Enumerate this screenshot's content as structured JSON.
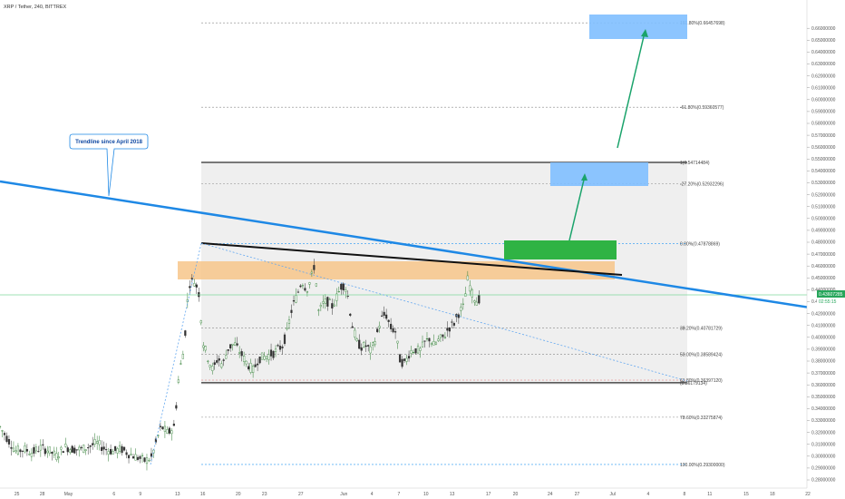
{
  "header": {
    "title": "XRP / Tether, 240, BITTREX"
  },
  "callout": {
    "text": "Trendline since April 2018"
  },
  "price_tags": {
    "last_price": "0.43607285",
    "countdown": "02:55:15",
    "last_price_color": "#26a65b"
  },
  "colors": {
    "trendline": "#1e88e5",
    "fib_zone_fill": "#eeeeee",
    "resistance_band": "#f7c58a",
    "target_box": "#7fbfff",
    "breakout_box": "#2fb344",
    "arrow": "#1aa36b",
    "up_candle": "#2e7d32",
    "down_candle": "#333333"
  },
  "chart_data": {
    "type": "candlestick",
    "symbol": "XRP / Tether",
    "timeframe": "240",
    "exchange": "BITTREX",
    "y_axis_ticks": [
      "0.66000000",
      "0.65000000",
      "0.64000000",
      "0.63000000",
      "0.62000000",
      "0.61000000",
      "0.60000000",
      "0.59000000",
      "0.58000000",
      "0.57000000",
      "0.56000000",
      "0.55000000",
      "0.54000000",
      "0.53000000",
      "0.52000000",
      "0.51000000",
      "0.50000000",
      "0.49000000",
      "0.48000000",
      "0.47000000",
      "0.46000000",
      "0.45000000",
      "0.44000000",
      "0.43000000",
      "0.42000000",
      "0.41000000",
      "0.40000000",
      "0.39000000",
      "0.38000000",
      "0.37000000",
      "0.36000000",
      "0.35000000",
      "0.34000000",
      "0.33000000",
      "0.32000000",
      "0.31000000",
      "0.30000000",
      "0.29000000",
      "0.28000000"
    ],
    "x_axis_ticks": [
      {
        "label": "25",
        "pos": 0.02
      },
      {
        "label": "28",
        "pos": 0.05
      },
      {
        "label": "May",
        "pos": 0.081
      },
      {
        "label": "6",
        "pos": 0.135
      },
      {
        "label": "9",
        "pos": 0.166
      },
      {
        "label": "13",
        "pos": 0.21
      },
      {
        "label": "16",
        "pos": 0.24
      },
      {
        "label": "20",
        "pos": 0.282
      },
      {
        "label": "23",
        "pos": 0.313
      },
      {
        "label": "27",
        "pos": 0.356
      },
      {
        "label": "Jun",
        "pos": 0.407
      },
      {
        "label": "4",
        "pos": 0.44
      },
      {
        "label": "7",
        "pos": 0.472
      },
      {
        "label": "10",
        "pos": 0.504
      },
      {
        "label": "13",
        "pos": 0.535
      },
      {
        "label": "17",
        "pos": 0.578
      },
      {
        "label": "20",
        "pos": 0.61
      },
      {
        "label": "24",
        "pos": 0.651
      },
      {
        "label": "27",
        "pos": 0.683
      },
      {
        "label": "Jul",
        "pos": 0.725
      },
      {
        "label": "4",
        "pos": 0.767
      },
      {
        "label": "8",
        "pos": 0.81
      },
      {
        "label": "11",
        "pos": 0.84
      },
      {
        "label": "15",
        "pos": 0.883
      },
      {
        "label": "18",
        "pos": 0.914
      },
      {
        "label": "22",
        "pos": 0.956
      }
    ],
    "fib_levels": [
      {
        "label": "161.80%(0.66457698)",
        "value": 0.66457698,
        "color": "#888888",
        "style": "dotted"
      },
      {
        "label": "-61.80%(0.59360577)",
        "value": 0.59360577,
        "color": "#888888",
        "style": "dotted"
      },
      {
        "label": "1(0.54714484)",
        "value": 0.54714484,
        "color": "#000000",
        "style": "solid"
      },
      {
        "label": "-27.20%(0.52932296)",
        "value": 0.52932296,
        "color": "#888888",
        "style": "dotted"
      },
      {
        "label": "0.00%(0.47878869)",
        "value": 0.47878869,
        "color": "#2196f3",
        "style": "dotted"
      },
      {
        "label": "38.20%(0.40781729)",
        "value": 0.40781729,
        "color": "#888888",
        "style": "dotted"
      },
      {
        "label": "50.00%(0.38589424)",
        "value": 0.38589424,
        "color": "#888888",
        "style": "dotted"
      },
      {
        "label": "61.80%(0.36397120)",
        "value": 0.3639712,
        "color": "#e57373",
        "style": "dotted"
      },
      {
        "label": "(0.36179134)",
        "value": 0.36179134,
        "color": "#000000",
        "style": "solid"
      },
      {
        "label": "78.60%(0.33275874)",
        "value": 0.33275874,
        "color": "#888888",
        "style": "dotted"
      },
      {
        "label": "100.00%(0.29300000)",
        "value": 0.293,
        "color": "#2196f3",
        "style": "dotted"
      }
    ],
    "candle_path": [
      [
        0.0,
        0.3245
      ],
      [
        0.01,
        0.314
      ],
      [
        0.02,
        0.304
      ],
      [
        0.03,
        0.306
      ],
      [
        0.04,
        0.303
      ],
      [
        0.05,
        0.307
      ],
      [
        0.06,
        0.305
      ],
      [
        0.07,
        0.3
      ],
      [
        0.08,
        0.308
      ],
      [
        0.09,
        0.306
      ],
      [
        0.1,
        0.3055
      ],
      [
        0.11,
        0.308
      ],
      [
        0.12,
        0.311
      ],
      [
        0.13,
        0.306
      ],
      [
        0.14,
        0.304
      ],
      [
        0.15,
        0.306
      ],
      [
        0.16,
        0.302
      ],
      [
        0.17,
        0.299
      ],
      [
        0.18,
        0.296
      ],
      [
        0.188,
        0.299
      ],
      [
        0.195,
        0.315
      ],
      [
        0.2,
        0.325
      ],
      [
        0.208,
        0.319
      ],
      [
        0.216,
        0.325
      ],
      [
        0.222,
        0.37
      ],
      [
        0.228,
        0.39
      ],
      [
        0.234,
        0.445
      ],
      [
        0.24,
        0.448
      ],
      [
        0.246,
        0.44
      ],
      [
        0.252,
        0.395
      ],
      [
        0.258,
        0.382
      ],
      [
        0.264,
        0.372
      ],
      [
        0.27,
        0.383
      ],
      [
        0.276,
        0.376
      ],
      [
        0.282,
        0.39
      ],
      [
        0.29,
        0.395
      ],
      [
        0.298,
        0.387
      ],
      [
        0.306,
        0.378
      ],
      [
        0.314,
        0.372
      ],
      [
        0.32,
        0.382
      ],
      [
        0.33,
        0.384
      ],
      [
        0.34,
        0.387
      ],
      [
        0.35,
        0.393
      ],
      [
        0.356,
        0.405
      ],
      [
        0.362,
        0.425
      ],
      [
        0.368,
        0.435
      ],
      [
        0.374,
        0.448
      ],
      [
        0.38,
        0.44
      ],
      [
        0.386,
        0.45
      ],
      [
        0.39,
        0.462
      ],
      [
        0.395,
        0.42
      ],
      [
        0.4,
        0.428
      ],
      [
        0.406,
        0.43
      ],
      [
        0.412,
        0.426
      ],
      [
        0.418,
        0.435
      ],
      [
        0.424,
        0.445
      ],
      [
        0.43,
        0.44
      ],
      [
        0.436,
        0.412
      ],
      [
        0.442,
        0.396
      ],
      [
        0.448,
        0.392
      ],
      [
        0.454,
        0.393
      ],
      [
        0.46,
        0.388
      ],
      [
        0.466,
        0.4
      ],
      [
        0.472,
        0.415
      ],
      [
        0.478,
        0.42
      ],
      [
        0.484,
        0.408
      ],
      [
        0.49,
        0.405
      ],
      [
        0.496,
        0.38
      ],
      [
        0.502,
        0.378
      ],
      [
        0.508,
        0.388
      ],
      [
        0.514,
        0.39
      ],
      [
        0.52,
        0.388
      ],
      [
        0.526,
        0.395
      ],
      [
        0.532,
        0.399
      ],
      [
        0.538,
        0.393
      ],
      [
        0.544,
        0.398
      ],
      [
        0.55,
        0.4
      ],
      [
        0.556,
        0.408
      ],
      [
        0.562,
        0.411
      ],
      [
        0.568,
        0.42
      ],
      [
        0.574,
        0.425
      ],
      [
        0.58,
        0.45
      ],
      [
        0.584,
        0.438
      ],
      [
        0.588,
        0.433
      ],
      [
        0.592,
        0.43
      ],
      [
        0.596,
        0.436
      ]
    ],
    "x_max": 1.0,
    "ylim": [
      0.28,
      0.68
    ]
  }
}
